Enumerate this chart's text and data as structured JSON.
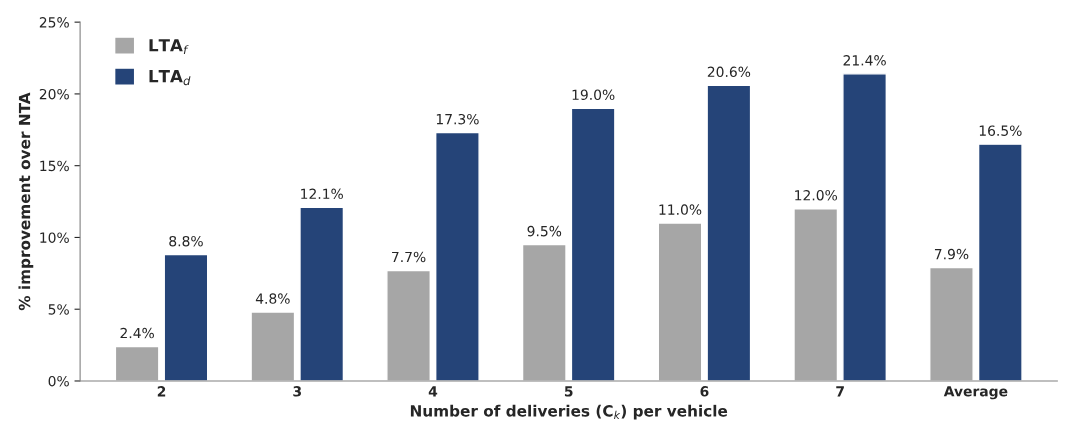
{
  "chart_data": {
    "type": "bar",
    "categories": [
      "2",
      "3",
      "4",
      "5",
      "6",
      "7",
      "Average"
    ],
    "xlabel": "Number of deliveries (C$_{k}$) per vehicle",
    "ylabel": "% improvement over NTA",
    "ylim": [
      0,
      25
    ],
    "yticks": [
      {
        "value": 0,
        "label": "0%"
      },
      {
        "value": 5,
        "label": "5%"
      },
      {
        "value": 10,
        "label": "10%"
      },
      {
        "value": 15,
        "label": "15%"
      },
      {
        "value": 20,
        "label": "20%"
      },
      {
        "value": 25,
        "label": "25%"
      }
    ],
    "grid": false,
    "legend": "top left",
    "series": [
      {
        "name": "LTA$_{f}$",
        "color": "#a6a6a6",
        "values": [
          2.4,
          4.8,
          7.7,
          9.5,
          11.0,
          12.0,
          7.9
        ],
        "value_labels": [
          "2.4%",
          "4.8%",
          "7.7%",
          "9.5%",
          "11.0%",
          "12.0%",
          "7.9%"
        ]
      },
      {
        "name": "LTA$_{d}$",
        "color": "#254478",
        "values": [
          8.8,
          12.1,
          17.3,
          19.0,
          20.6,
          21.4,
          16.5
        ],
        "value_labels": [
          "8.8%",
          "12.1%",
          "17.3%",
          "19.0%",
          "20.6%",
          "21.4%",
          "16.5%"
        ]
      }
    ]
  }
}
